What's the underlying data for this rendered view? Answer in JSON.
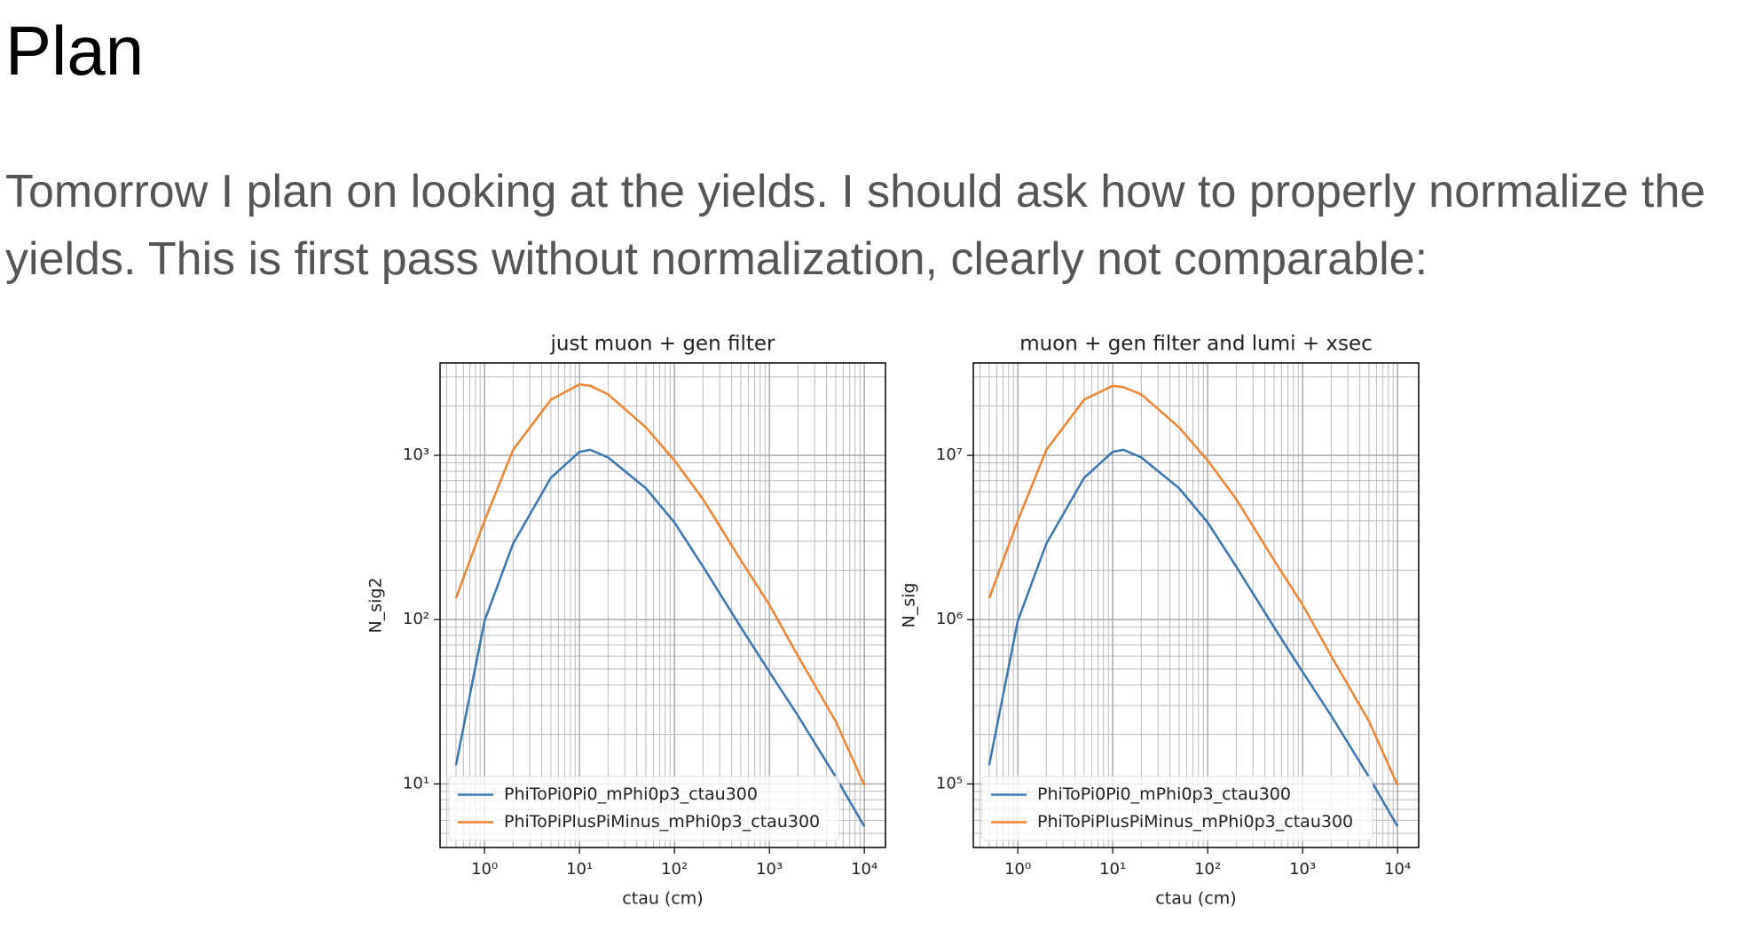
{
  "heading": "Plan",
  "paragraph": "Tomorrow I plan on looking at the yields. I should ask how to properly normalize the yields. This is first pass without normalization, clearly not comparable:",
  "chart_data": [
    {
      "type": "line",
      "title": "just muon + gen filter",
      "x_label": "ctau (cm)",
      "y_label": "N_sig2",
      "x": [
        0.5,
        1,
        2,
        5,
        10,
        13,
        20,
        50,
        100,
        200,
        500,
        1000,
        2000,
        5000,
        10000
      ],
      "series": [
        {
          "name": "PhiToPi0Pi0_mPhi0p3_ctau300",
          "color": "#3a77b0",
          "values": [
            13,
            98,
            290,
            730,
            1050,
            1080,
            970,
            630,
            390,
            210,
            90,
            48,
            26,
            11,
            5.5
          ]
        },
        {
          "name": "PhiToPiPlusPiMinus_mPhi0p3_ctau300",
          "color": "#ef8530",
          "values": [
            135,
            400,
            1080,
            2180,
            2700,
            2650,
            2350,
            1480,
            930,
            540,
            230,
            123,
            60,
            24,
            9.8
          ]
        }
      ],
      "xlim": [
        0.34,
        16700
      ],
      "ylim": [
        4.1,
        3650
      ],
      "log_x": true,
      "log_y": true,
      "grid": true,
      "legend": "lower left",
      "xticks": [
        {
          "value": 1,
          "label": "10⁰"
        },
        {
          "value": 10,
          "label": "10¹"
        },
        {
          "value": 100,
          "label": "10²"
        },
        {
          "value": 1000,
          "label": "10³"
        },
        {
          "value": 10000,
          "label": "10⁴"
        }
      ],
      "yticks": [
        {
          "value": 10,
          "label": "10¹"
        },
        {
          "value": 100,
          "label": "10²"
        },
        {
          "value": 1000,
          "label": "10³"
        }
      ]
    },
    {
      "type": "line",
      "title": "muon + gen filter and lumi + xsec",
      "x_label": "ctau (cm)",
      "y_label": "N_sig",
      "x": [
        0.5,
        1,
        2,
        5,
        10,
        13,
        20,
        50,
        100,
        200,
        500,
        1000,
        2000,
        5000,
        10000
      ],
      "series": [
        {
          "name": "PhiToPi0Pi0_mPhi0p3_ctau300",
          "color": "#3a77b0",
          "values": [
            130000,
            980000,
            2900000,
            7300000,
            10500000,
            10800000,
            9700000,
            6300000,
            3900000,
            2100000,
            900000,
            480000,
            260000,
            110000,
            55000
          ]
        },
        {
          "name": "PhiToPiPlusPiMinus_mPhi0p3_ctau300",
          "color": "#ef8530",
          "values": [
            1350000,
            4000000,
            10800000,
            21800000,
            26500000,
            26000000,
            23500000,
            14800000,
            9300000,
            5400000,
            2300000,
            1230000,
            600000,
            240000,
            98000
          ]
        }
      ],
      "xlim": [
        0.34,
        16700
      ],
      "ylim": [
        41000,
        36500000
      ],
      "log_x": true,
      "log_y": true,
      "grid": true,
      "legend": "lower left",
      "xticks": [
        {
          "value": 1,
          "label": "10⁰"
        },
        {
          "value": 10,
          "label": "10¹"
        },
        {
          "value": 100,
          "label": "10²"
        },
        {
          "value": 1000,
          "label": "10³"
        },
        {
          "value": 10000,
          "label": "10⁴"
        }
      ],
      "yticks": [
        {
          "value": 100000,
          "label": "10⁵"
        },
        {
          "value": 1000000,
          "label": "10⁶"
        },
        {
          "value": 10000000,
          "label": "10⁷"
        }
      ]
    }
  ]
}
